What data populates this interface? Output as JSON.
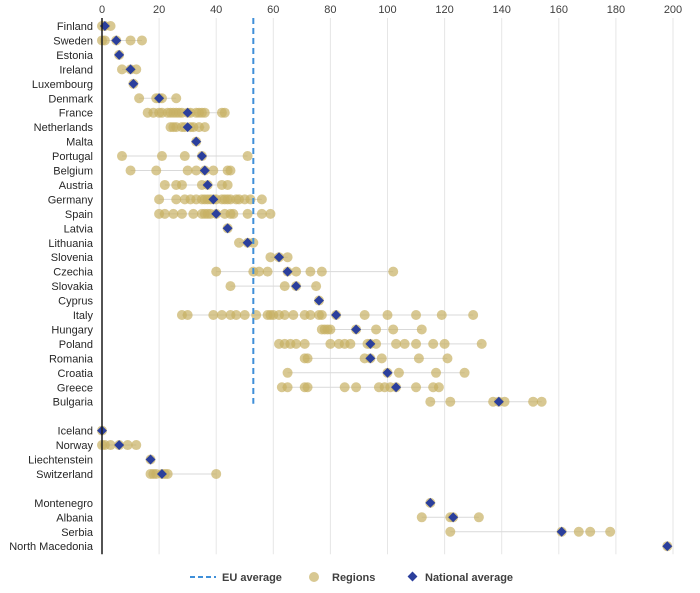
{
  "chart_data": {
    "type": "scatter",
    "xlim": [
      0,
      200
    ],
    "xticks": [
      0,
      20,
      40,
      60,
      80,
      100,
      120,
      140,
      160,
      180,
      200
    ],
    "eu_average": 53,
    "legend": {
      "eu": "EU average",
      "regions": "Regions",
      "national": "National average"
    },
    "colors": {
      "region": "#c8b164",
      "national": "#2b3f9c",
      "eu": "#3f8fd9",
      "grid": "#e6e6e6",
      "axis": "#1a1a1a"
    },
    "countries": [
      {
        "name": "Finland",
        "national": 1,
        "regions": [
          0,
          1,
          3
        ]
      },
      {
        "name": "Sweden",
        "national": 5,
        "regions": [
          0,
          1,
          5,
          10,
          14
        ]
      },
      {
        "name": "Estonia",
        "national": 6,
        "regions": [
          6
        ]
      },
      {
        "name": "Ireland",
        "national": 10,
        "regions": [
          7,
          10,
          12
        ]
      },
      {
        "name": "Luxembourg",
        "national": 11,
        "regions": [
          11
        ]
      },
      {
        "name": "Denmark",
        "national": 20,
        "regions": [
          13,
          19,
          20,
          21,
          26
        ]
      },
      {
        "name": "France",
        "national": 30,
        "regions": [
          16,
          18,
          20,
          21,
          23,
          24,
          25,
          26,
          27,
          28,
          30,
          31,
          33,
          34,
          35,
          36,
          42,
          43
        ]
      },
      {
        "name": "Netherlands",
        "national": 30,
        "regions": [
          24,
          25,
          26,
          28,
          29,
          31,
          32,
          34,
          36
        ]
      },
      {
        "name": "Malta",
        "national": 33,
        "regions": [
          33
        ]
      },
      {
        "name": "Portugal",
        "national": 35,
        "regions": [
          7,
          21,
          29,
          35,
          51
        ]
      },
      {
        "name": "Belgium",
        "national": 36,
        "regions": [
          10,
          19,
          30,
          33,
          36,
          39,
          44,
          45
        ]
      },
      {
        "name": "Austria",
        "national": 37,
        "regions": [
          22,
          26,
          28,
          35,
          37,
          42,
          44
        ]
      },
      {
        "name": "Germany",
        "national": 39,
        "regions": [
          20,
          26,
          29,
          31,
          33,
          35,
          36,
          37,
          38,
          39,
          40,
          42,
          43,
          44,
          45,
          47,
          48,
          50,
          52,
          56
        ]
      },
      {
        "name": "Spain",
        "national": 40,
        "regions": [
          20,
          22,
          25,
          28,
          32,
          35,
          36,
          37,
          38,
          40,
          43,
          45,
          46,
          51,
          56,
          59
        ]
      },
      {
        "name": "Latvia",
        "national": 44,
        "regions": [
          44
        ]
      },
      {
        "name": "Lithuania",
        "national": 51,
        "regions": [
          48,
          51,
          53
        ]
      },
      {
        "name": "Slovenia",
        "national": 62,
        "regions": [
          59,
          62,
          65
        ]
      },
      {
        "name": "Czechia",
        "national": 65,
        "regions": [
          40,
          53,
          55,
          58,
          65,
          68,
          73,
          77,
          102
        ]
      },
      {
        "name": "Slovakia",
        "national": 68,
        "regions": [
          45,
          64,
          68,
          75
        ]
      },
      {
        "name": "Cyprus",
        "national": 76,
        "regions": [
          76
        ]
      },
      {
        "name": "Italy",
        "national": 82,
        "regions": [
          28,
          30,
          39,
          42,
          45,
          47,
          50,
          54,
          58,
          59,
          60,
          62,
          64,
          67,
          71,
          73,
          76,
          77,
          82,
          92,
          100,
          110,
          119,
          130
        ]
      },
      {
        "name": "Hungary",
        "national": 89,
        "regions": [
          77,
          78,
          79,
          80,
          89,
          96,
          102,
          112
        ]
      },
      {
        "name": "Poland",
        "national": 94,
        "regions": [
          62,
          64,
          66,
          68,
          71,
          80,
          83,
          85,
          87,
          93,
          94,
          96,
          103,
          106,
          110,
          116,
          120,
          133
        ]
      },
      {
        "name": "Romania",
        "national": 94,
        "regions": [
          71,
          72,
          92,
          94,
          98,
          111,
          121
        ]
      },
      {
        "name": "Croatia",
        "national": 100,
        "regions": [
          65,
          100,
          104,
          117,
          127
        ]
      },
      {
        "name": "Greece",
        "national": 103,
        "regions": [
          63,
          65,
          71,
          72,
          85,
          89,
          97,
          99,
          101,
          103,
          110,
          116,
          118
        ]
      },
      {
        "name": "Bulgaria",
        "national": 139,
        "regions": [
          115,
          122,
          137,
          139,
          141,
          151,
          154
        ]
      },
      {
        "name": "",
        "gap": true
      },
      {
        "name": "Iceland",
        "national": 0,
        "regions": [
          0
        ]
      },
      {
        "name": "Norway",
        "national": 6,
        "regions": [
          0,
          1,
          3,
          6,
          9,
          12
        ]
      },
      {
        "name": "Liechtenstein",
        "national": 17,
        "regions": [
          17
        ]
      },
      {
        "name": "Switzerland",
        "national": 21,
        "regions": [
          17,
          18,
          19,
          21,
          22,
          23,
          40
        ]
      },
      {
        "name": "",
        "gap": true
      },
      {
        "name": "Montenegro",
        "national": 115,
        "regions": [
          115
        ]
      },
      {
        "name": "Albania",
        "national": 123,
        "regions": [
          112,
          122,
          123,
          132
        ]
      },
      {
        "name": "Serbia",
        "national": 161,
        "regions": [
          122,
          161,
          167,
          171,
          178
        ]
      },
      {
        "name": "North Macedonia",
        "national": 198,
        "regions": [
          198
        ]
      }
    ]
  }
}
